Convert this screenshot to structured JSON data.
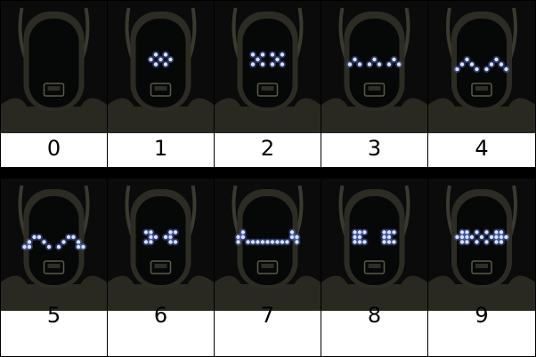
{
  "panels": [
    {
      "label": "0",
      "expression": "off"
    },
    {
      "label": "1",
      "expression": "small-dots"
    },
    {
      "label": "2",
      "expression": "x-eyes"
    },
    {
      "label": "3",
      "expression": "caret-eyes"
    },
    {
      "label": "4",
      "expression": "arched-eyes"
    },
    {
      "label": "5",
      "expression": "wide-arches"
    },
    {
      "label": "6",
      "expression": "angled-eyes"
    },
    {
      "label": "7",
      "expression": "drooping-bar"
    },
    {
      "label": "8",
      "expression": "square-blocks"
    },
    {
      "label": "9",
      "expression": "wide-band"
    }
  ],
  "colors": {
    "led": "#d6e2ff",
    "led_glow": "#6f8cff",
    "robot_shell": "#2c2c24",
    "robot_face": "#060707",
    "background": "#0a0b0a"
  }
}
